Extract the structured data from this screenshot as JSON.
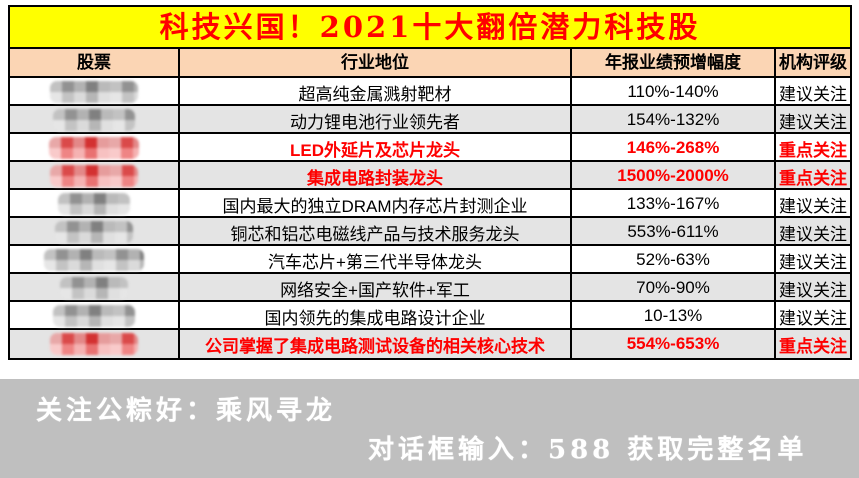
{
  "title": "科技兴国！2021十大翻倍潜力科技股",
  "colors": {
    "title_bg": "#ffff00",
    "title_text": "#ff0000",
    "header_bg": "#fbd5b4",
    "row_alt_bg": "#e4e4e4",
    "highlight_red": "#fe0000",
    "footer_bg": "#bfbfbf",
    "footer_text": "#ffffff"
  },
  "table": {
    "headers": [
      "股票",
      "行业地位",
      "年报业绩预增幅度",
      "机构评级"
    ],
    "rows": [
      {
        "stock_redacted": true,
        "redact_tone": "gray",
        "industry": "超高纯金属溅射靶材",
        "forecast": "110%-140%",
        "rating": "建议关注",
        "highlight": false
      },
      {
        "stock_redacted": true,
        "redact_tone": "gray",
        "industry": "动力锂电池行业领先者",
        "forecast": "154%-132%",
        "rating": "建议关注",
        "highlight": false
      },
      {
        "stock_redacted": true,
        "redact_tone": "red",
        "industry": "LED外延片及芯片龙头",
        "forecast": "146%-268%",
        "rating": "重点关注",
        "highlight": true
      },
      {
        "stock_redacted": true,
        "redact_tone": "red",
        "industry": "集成电路封装龙头",
        "forecast": "1500%-2000%",
        "rating": "重点关注",
        "highlight": true
      },
      {
        "stock_redacted": true,
        "redact_tone": "gray",
        "industry": "国内最大的独立DRAM内存芯片封测企业",
        "forecast": "133%-167%",
        "rating": "建议关注",
        "highlight": false
      },
      {
        "stock_redacted": true,
        "redact_tone": "gray",
        "industry": "铜芯和铝芯电磁线产品与技术服务龙头",
        "forecast": "553%-611%",
        "rating": "建议关注",
        "highlight": false
      },
      {
        "stock_redacted": true,
        "redact_tone": "gray",
        "industry": "汽车芯片+第三代半导体龙头",
        "forecast": "52%-63%",
        "rating": "建议关注",
        "highlight": false
      },
      {
        "stock_redacted": true,
        "redact_tone": "gray",
        "industry": "网络安全+国产软件+军工",
        "forecast": "70%-90%",
        "rating": "建议关注",
        "highlight": false
      },
      {
        "stock_redacted": true,
        "redact_tone": "gray",
        "industry": "国内领先的集成电路设计企业",
        "forecast": "10-13%",
        "rating": "建议关注",
        "highlight": false
      },
      {
        "stock_redacted": true,
        "redact_tone": "red",
        "industry": "公司掌握了集成电路测试设备的相关核心技术",
        "forecast": "554%-653%",
        "rating": "重点关注",
        "highlight": true
      }
    ]
  },
  "footer": {
    "line1": "关注公粽好：乘风寻龙",
    "line2": "对话框输入：588 获取完整名单"
  }
}
